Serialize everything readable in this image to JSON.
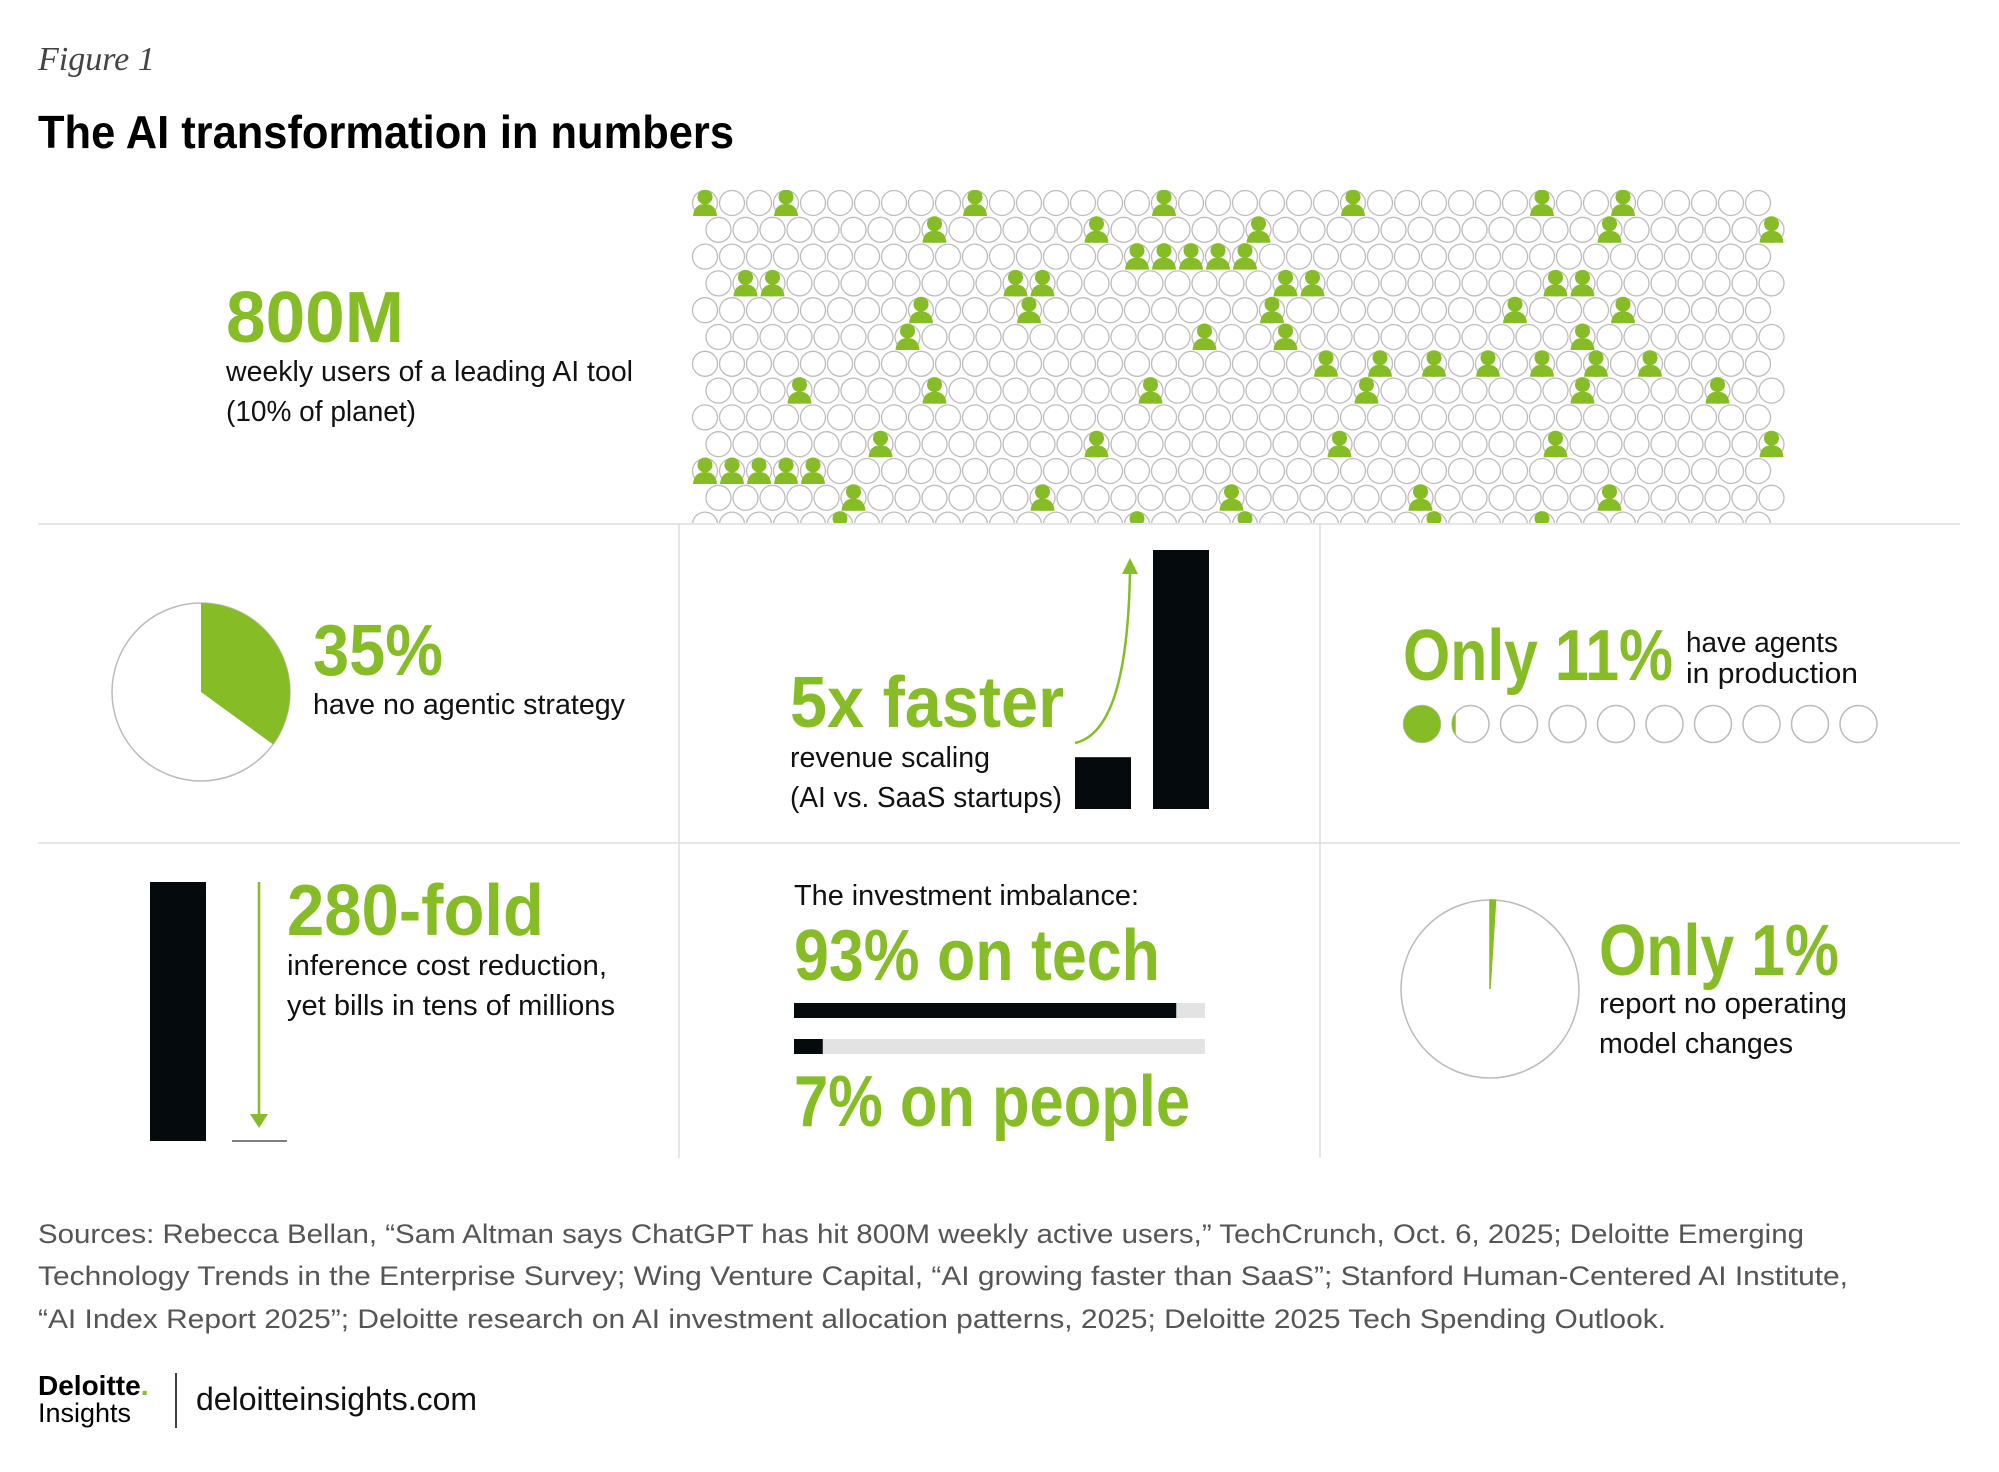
{
  "header": {
    "figure": "Figure 1",
    "title": "The AI transformation in numbers"
  },
  "stats": {
    "users": {
      "headline": "800M",
      "text_lines": [
        "weekly users of a leading AI tool",
        "(10% of planet)"
      ]
    },
    "agentic": {
      "value": 35,
      "headline": "35%",
      "text": "have no agentic strategy"
    },
    "revenue": {
      "value": 5,
      "headline": "5x faster",
      "text_lines": [
        "revenue scaling",
        "(AI vs. SaaS startups)"
      ]
    },
    "agents": {
      "value": 11,
      "headline": "Only 11%",
      "text_lines": [
        "have agents",
        "in production"
      ]
    },
    "inference": {
      "headline": "280-fold",
      "text_lines": [
        "inference cost reduction,",
        "yet bills in tens of millions"
      ]
    },
    "investment": {
      "intro": "The investment imbalance:",
      "tech": {
        "value": 93,
        "label": "93% on tech"
      },
      "people": {
        "value": 7,
        "label": "7% on people"
      }
    },
    "operating": {
      "value": 1,
      "headline": "Only 1%",
      "text_lines": [
        "report no operating",
        "model changes"
      ]
    }
  },
  "sources": [
    "Sources: Rebecca Bellan, “Sam Altman says ChatGPT has hit 800M weekly active users,” TechCrunch, Oct. 6, 2025; Deloitte Emerging",
    "Technology Trends in the Enterprise Survey; Wing Venture Capital, “AI growing faster than SaaS”; Stanford Human-Centered AI Institute,",
    "“AI Index Report 2025”; Deloitte research on AI investment allocation patterns, 2025; Deloitte 2025 Tech Spending Outlook."
  ],
  "footer": {
    "brand": "Deloitte",
    "brand_dot": ".",
    "sub": "Insights",
    "url": "deloitteinsights.com"
  }
}
